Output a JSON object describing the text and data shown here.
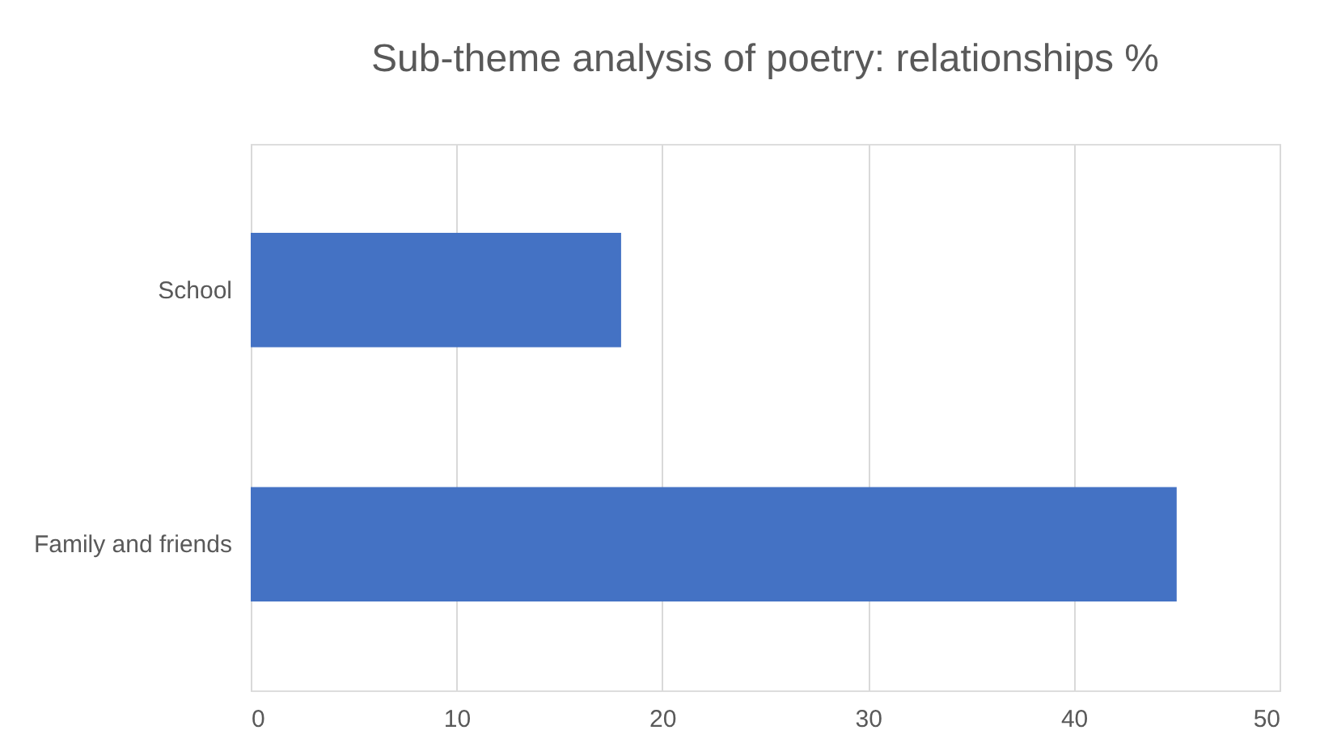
{
  "chart_data": {
    "type": "bar",
    "orientation": "horizontal",
    "title": "Sub-theme analysis of poetry: relationships %",
    "categories": [
      "School",
      "Family and friends"
    ],
    "values": [
      18,
      45
    ],
    "color": "#4472c4",
    "xlim": [
      0,
      50
    ],
    "xticks": [
      0,
      10,
      20,
      30,
      40,
      50
    ],
    "grid": "x"
  }
}
